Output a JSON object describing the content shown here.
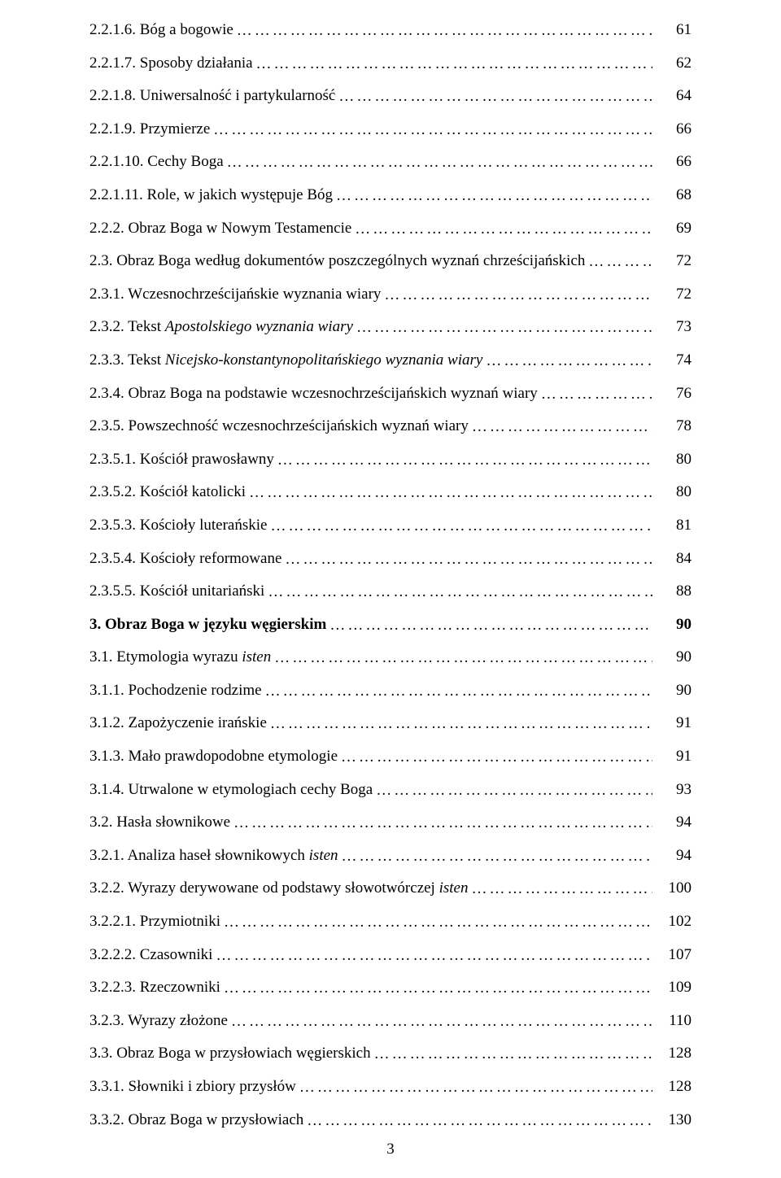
{
  "page_number": "3",
  "dots_fill": "……………………………………………………………………………………………………………………………………………………………………………………………………",
  "toc": [
    {
      "num": "2.2.1.6.",
      "text": "Bóg a bogowie",
      "page": "61",
      "italic": false,
      "bold": false
    },
    {
      "num": "2.2.1.7.",
      "text": "Sposoby działania",
      "page": "62",
      "italic": false,
      "bold": false
    },
    {
      "num": "2.2.1.8.",
      "text": "Uniwersalność i partykularność",
      "page": "64",
      "italic": false,
      "bold": false
    },
    {
      "num": "2.2.1.9.",
      "text": "Przymierze",
      "page": "66",
      "italic": false,
      "bold": false
    },
    {
      "num": "2.2.1.10.",
      "text": "Cechy Boga",
      "page": "66",
      "italic": false,
      "bold": false
    },
    {
      "num": "2.2.1.11.",
      "text": "Role, w jakich występuje Bóg",
      "page": "68",
      "italic": false,
      "bold": false
    },
    {
      "num": "2.2.2.",
      "text": "Obraz Boga w Nowym Testamencie",
      "page": "69",
      "italic": false,
      "bold": false
    },
    {
      "num": "2.3.",
      "text": "Obraz Boga według dokumentów poszczególnych wyznań chrześcijańskich",
      "page": "72",
      "italic": false,
      "bold": false
    },
    {
      "num": "2.3.1.",
      "text": "Wczesnochrześcijańskie wyznania wiary",
      "page": "72",
      "italic": false,
      "bold": false
    },
    {
      "num": "2.3.2.",
      "text": "Tekst <i>Apostolskiego wyznania wiary</i>",
      "page": "73",
      "italic": true,
      "bold": false
    },
    {
      "num": "2.3.3.",
      "text": "Tekst <i>Nicejsko-konstantynopolitańskiego wyznania wiary</i>",
      "page": "74",
      "italic": true,
      "bold": false
    },
    {
      "num": "2.3.4.",
      "text": "Obraz Boga na podstawie wczesnochrześcijańskich wyznań wiary",
      "page": "76",
      "italic": false,
      "bold": false
    },
    {
      "num": "2.3.5.",
      "text": "Powszechność wczesnochrześcijańskich wyznań wiary",
      "page": "78",
      "italic": false,
      "bold": false
    },
    {
      "num": "2.3.5.1.",
      "text": "Kościół prawosławny",
      "page": "80",
      "italic": false,
      "bold": false
    },
    {
      "num": "2.3.5.2.",
      "text": "Kościół katolicki",
      "page": "80",
      "italic": false,
      "bold": false
    },
    {
      "num": "2.3.5.3.",
      "text": "Kościoły luterańskie",
      "page": "81",
      "italic": false,
      "bold": false
    },
    {
      "num": "2.3.5.4.",
      "text": "Kościoły reformowane",
      "page": "84",
      "italic": false,
      "bold": false
    },
    {
      "num": "2.3.5.5.",
      "text": "Kościół unitariański",
      "page": "88",
      "italic": false,
      "bold": false
    },
    {
      "num": "3.",
      "text": "Obraz Boga w języku węgierskim",
      "page": "90",
      "italic": false,
      "bold": true
    },
    {
      "num": "3.1.",
      "text": "Etymologia wyrazu <i>isten</i>",
      "page": "90",
      "italic": true,
      "bold": false
    },
    {
      "num": "3.1.1.",
      "text": "Pochodzenie rodzime",
      "page": "90",
      "italic": false,
      "bold": false
    },
    {
      "num": "3.1.2.",
      "text": "Zapożyczenie irańskie",
      "page": "91",
      "italic": false,
      "bold": false
    },
    {
      "num": "3.1.3.",
      "text": "Mało prawdopodobne etymologie",
      "page": "91",
      "italic": false,
      "bold": false
    },
    {
      "num": "3.1.4.",
      "text": "Utrwalone w etymologiach cechy Boga",
      "page": "93",
      "italic": false,
      "bold": false
    },
    {
      "num": "3.2.",
      "text": "Hasła słownikowe",
      "page": "94",
      "italic": false,
      "bold": false
    },
    {
      "num": "3.2.1.",
      "text": "Analiza haseł słownikowych <i>isten</i>",
      "page": "94",
      "italic": true,
      "bold": false
    },
    {
      "num": "3.2.2.",
      "text": "Wyrazy derywowane od podstawy słowotwórczej <i>isten</i>",
      "page": "100",
      "italic": true,
      "bold": false
    },
    {
      "num": "3.2.2.1.",
      "text": "Przymiotniki",
      "page": "102",
      "italic": false,
      "bold": false
    },
    {
      "num": "3.2.2.2.",
      "text": "Czasowniki",
      "page": "107",
      "italic": false,
      "bold": false
    },
    {
      "num": "3.2.2.3.",
      "text": "Rzeczowniki",
      "page": "109",
      "italic": false,
      "bold": false
    },
    {
      "num": "3.2.3.",
      "text": "Wyrazy złożone",
      "page": "110",
      "italic": false,
      "bold": false
    },
    {
      "num": "3.3.",
      "text": "Obraz Boga w przysłowiach węgierskich",
      "page": "128",
      "italic": false,
      "bold": false
    },
    {
      "num": "3.3.1.",
      "text": "Słowniki i zbiory przysłów",
      "page": "128",
      "italic": false,
      "bold": false
    },
    {
      "num": "3.3.2.",
      "text": "Obraz Boga w przysłowiach",
      "page": "130",
      "italic": false,
      "bold": false
    }
  ]
}
